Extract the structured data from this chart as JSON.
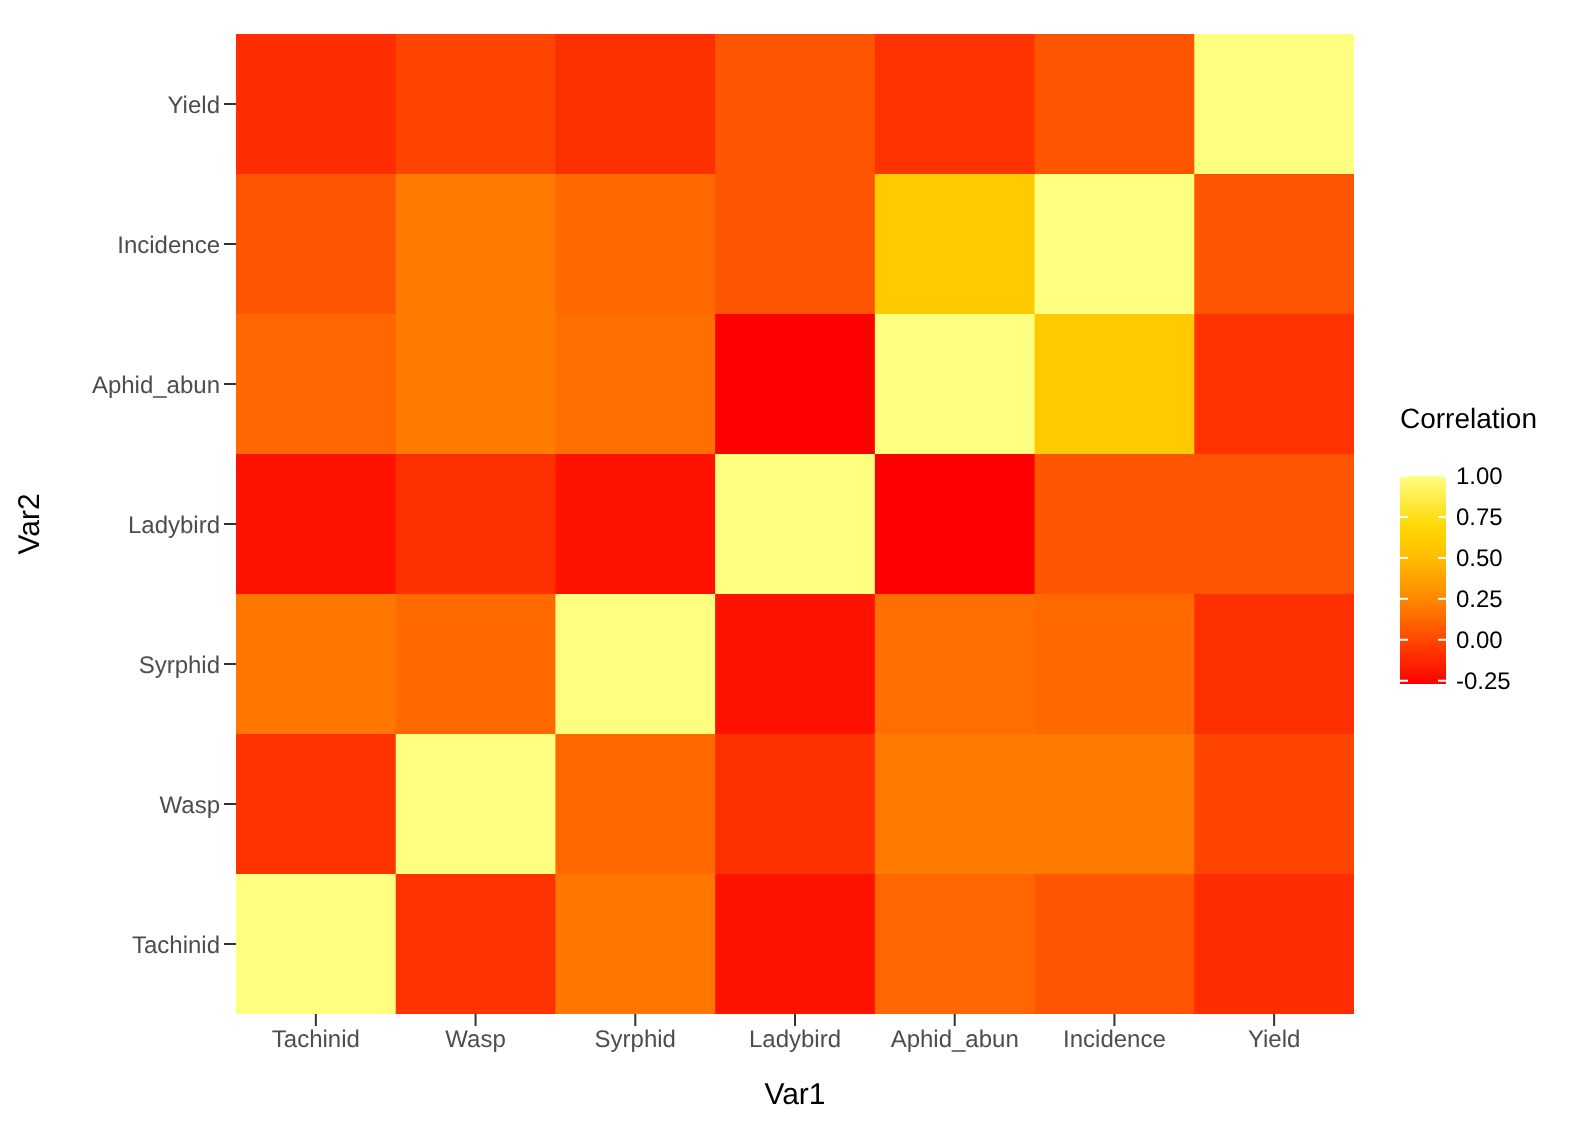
{
  "chart_data": {
    "type": "heatmap",
    "xlabel": "Var1",
    "ylabel": "Var2",
    "legend_title": "Correlation",
    "categories": [
      "Tachinid",
      "Wasp",
      "Syrphid",
      "Ladybird",
      "Aphid_abun",
      "Incidence",
      "Yield"
    ],
    "y_categories": [
      "Yield",
      "Incidence",
      "Aphid_abun",
      "Ladybird",
      "Syrphid",
      "Wasp",
      "Tachinid"
    ],
    "cells": [
      [
        -0.1,
        -0.01,
        -0.09,
        0.05,
        -0.08,
        0.05,
        1
      ],
      [
        0.05,
        0.2,
        0.13,
        0.05,
        0.6,
        1,
        0.05
      ],
      [
        0.12,
        0.2,
        0.15,
        -0.27,
        1,
        0.6,
        -0.08
      ],
      [
        -0.2,
        -0.09,
        -0.2,
        1,
        -0.27,
        0.05,
        0.05
      ],
      [
        0.18,
        0.13,
        1,
        -0.2,
        0.15,
        0.13,
        -0.09
      ],
      [
        -0.08,
        1,
        0.13,
        -0.09,
        0.2,
        0.2,
        -0.01
      ],
      [
        1,
        -0.08,
        0.18,
        -0.2,
        0.12,
        0.05,
        -0.1
      ]
    ],
    "clim": [
      -0.27,
      1
    ],
    "cticks": [
      {
        "value": 1,
        "label": "1.00"
      },
      {
        "value": 0.75,
        "label": "0.75"
      },
      {
        "value": 0.5,
        "label": "0.50"
      },
      {
        "value": 0.25,
        "label": "0.25"
      },
      {
        "value": 0,
        "label": "0.00"
      },
      {
        "value": -0.25,
        "label": "-0.25"
      }
    ]
  }
}
